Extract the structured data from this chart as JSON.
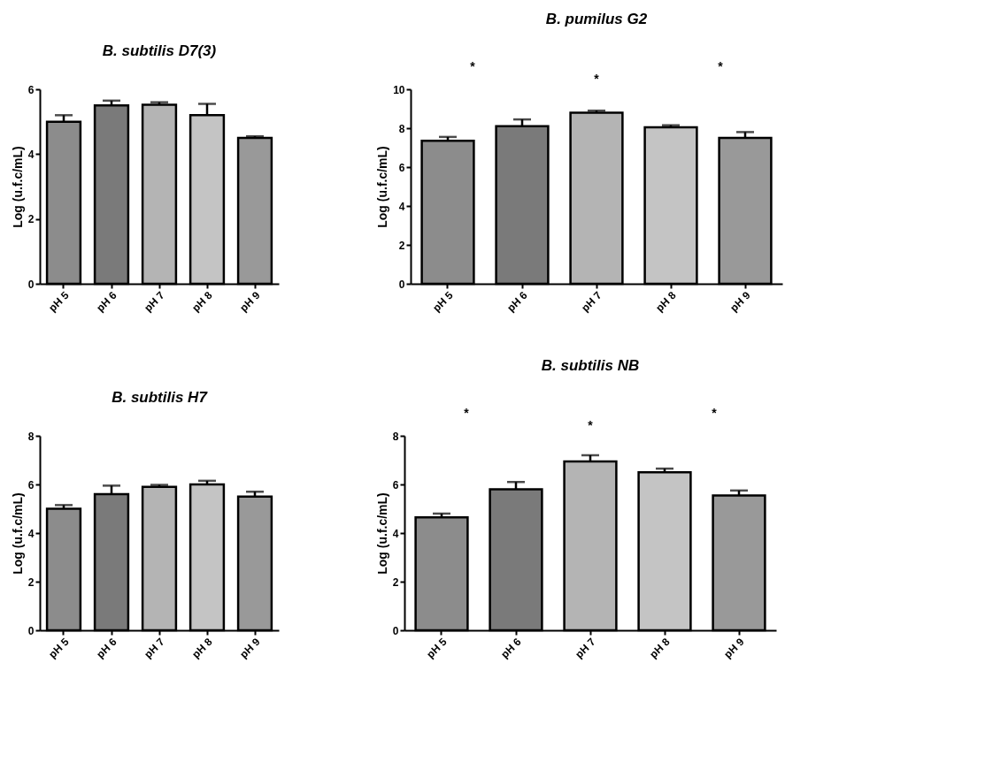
{
  "chart_data": [
    {
      "type": "bar",
      "title": "B. subtilis D7(3)",
      "ylabel": "Log (u.f.c/mL)",
      "categories": [
        "pH 5",
        "pH 6",
        "pH 7",
        "pH 8",
        "pH 9"
      ],
      "values": [
        5.0,
        5.5,
        5.52,
        5.2,
        4.5
      ],
      "errors": [
        [
          5.0,
          5.2
        ],
        [
          5.5,
          5.65
        ],
        [
          5.52,
          5.6
        ],
        [
          5.2,
          5.55
        ],
        [
          4.5,
          4.55
        ]
      ],
      "colors": [
        "#8c8c8c",
        "#7a7a7a",
        "#b4b4b4",
        "#c4c4c4",
        "#999999"
      ],
      "ylim": [
        0,
        6
      ],
      "yticks": [
        0,
        2,
        4,
        6
      ],
      "grid": false
    },
    {
      "type": "bar",
      "title": "B. pumilus G2",
      "ylabel": "Log (u.f.c/mL)",
      "categories": [
        "pH 5",
        "pH 6",
        "pH 7",
        "pH 8",
        "pH 9"
      ],
      "values": [
        7.35,
        8.1,
        8.8,
        8.05,
        7.5
      ],
      "errors": [
        [
          7.35,
          7.55
        ],
        [
          8.1,
          8.45
        ],
        [
          8.8,
          8.9
        ],
        [
          8.05,
          8.15
        ],
        [
          7.5,
          7.8
        ]
      ],
      "colors": [
        "#8c8c8c",
        "#7a7a7a",
        "#b4b4b4",
        "#c4c4c4",
        "#999999"
      ],
      "ylim": [
        0,
        10
      ],
      "yticks": [
        0,
        2,
        4,
        6,
        8,
        10
      ],
      "grid": false,
      "annotations": [
        "*",
        "*",
        "*"
      ]
    },
    {
      "type": "bar",
      "title": "B. subtilis H7",
      "ylabel": "Log (u.f.c/mL)",
      "categories": [
        "pH 5",
        "pH 6",
        "pH 7",
        "pH 8",
        "pH 9"
      ],
      "values": [
        5.0,
        5.6,
        5.9,
        6.0,
        5.5
      ],
      "errors": [
        [
          5.0,
          5.15
        ],
        [
          5.6,
          5.95
        ],
        [
          5.9,
          5.98
        ],
        [
          6.0,
          6.15
        ],
        [
          5.5,
          5.7
        ]
      ],
      "colors": [
        "#8c8c8c",
        "#7a7a7a",
        "#b4b4b4",
        "#c4c4c4",
        "#999999"
      ],
      "ylim": [
        0,
        8
      ],
      "yticks": [
        0,
        2,
        4,
        6,
        8
      ],
      "grid": false
    },
    {
      "type": "bar",
      "title": "B. subtilis NB",
      "ylabel": "Log (u.f.c/mL)",
      "categories": [
        "pH 5",
        "pH 6",
        "pH 7",
        "pH 8",
        "pH 9"
      ],
      "values": [
        4.65,
        5.8,
        6.95,
        6.5,
        5.55
      ],
      "errors": [
        [
          4.65,
          4.8
        ],
        [
          5.8,
          6.1
        ],
        [
          6.95,
          7.2
        ],
        [
          6.5,
          6.65
        ],
        [
          5.55,
          5.75
        ]
      ],
      "colors": [
        "#8c8c8c",
        "#7a7a7a",
        "#b4b4b4",
        "#c4c4c4",
        "#999999"
      ],
      "ylim": [
        0,
        8
      ],
      "yticks": [
        0,
        2,
        4,
        6,
        8
      ],
      "grid": false,
      "annotations": [
        "*",
        "*",
        "*"
      ]
    }
  ]
}
